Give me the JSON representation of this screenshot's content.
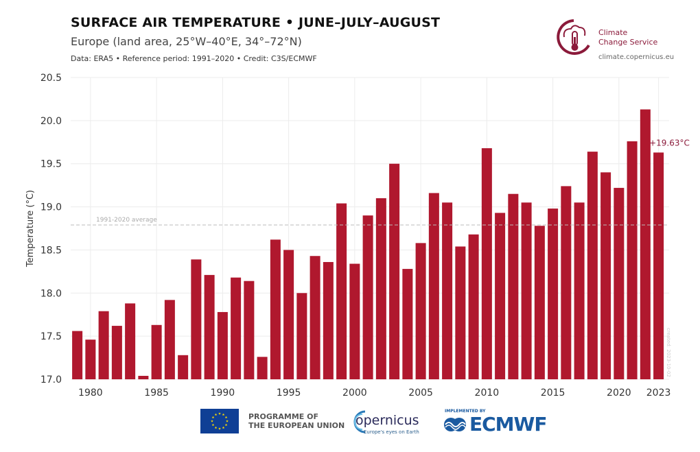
{
  "header": {
    "title": "SURFACE AIR TEMPERATURE • JUNE–JULY–AUGUST",
    "subtitle": "Europe (land area, 25°W–40°E, 34°–72°N)",
    "source": "Data: ERA5 • Reference period: 1991–2020 • Credit: C3S/ECMWF"
  },
  "logo": {
    "name_line1": "Climate",
    "name_line2": "Change Service",
    "url": "climate.copernicus.eu",
    "color": "#8b1a3a"
  },
  "footer": {
    "eu_line1": "PROGRAMME OF",
    "eu_line2": "THE EUROPEAN UNION",
    "copernicus": "opernicus",
    "copernicus_tag": "Europe's eyes on Earth",
    "ecmwf_implemented": "IMPLEMENTED BY",
    "ecmwf": "ECMWF"
  },
  "watermark": "created: 2023-10-02",
  "chart_data": {
    "type": "bar",
    "ylabel": "Temperature (°C)",
    "ylim": [
      17.0,
      20.5
    ],
    "yticks": [
      "17.0",
      "17.5",
      "18.0",
      "18.5",
      "19.0",
      "19.5",
      "20.0",
      "20.5"
    ],
    "xticks": [
      "1980",
      "1985",
      "1990",
      "1995",
      "2000",
      "2005",
      "2010",
      "2015",
      "2020",
      "2023"
    ],
    "bar_color": "#b0182e",
    "grid": true,
    "reference_line": {
      "label": "1991-2020 average",
      "value": 18.79
    },
    "last_value_label": "+19.63°C",
    "years": [
      1979,
      1980,
      1981,
      1982,
      1983,
      1984,
      1985,
      1986,
      1987,
      1988,
      1989,
      1990,
      1991,
      1992,
      1993,
      1994,
      1995,
      1996,
      1997,
      1998,
      1999,
      2000,
      2001,
      2002,
      2003,
      2004,
      2005,
      2006,
      2007,
      2008,
      2009,
      2010,
      2011,
      2012,
      2013,
      2014,
      2015,
      2016,
      2017,
      2018,
      2019,
      2020,
      2021,
      2022,
      2023
    ],
    "values": [
      17.56,
      17.46,
      17.79,
      17.62,
      17.88,
      17.04,
      17.63,
      17.92,
      17.28,
      18.39,
      18.21,
      17.78,
      18.18,
      18.14,
      17.26,
      18.62,
      18.5,
      18.0,
      18.43,
      18.36,
      19.04,
      18.34,
      18.9,
      19.1,
      19.5,
      18.28,
      18.58,
      19.16,
      19.05,
      18.54,
      18.68,
      19.68,
      18.93,
      19.15,
      19.05,
      18.78,
      18.98,
      19.24,
      19.05,
      19.64,
      19.4,
      19.22,
      19.76,
      20.13,
      19.63
    ]
  }
}
